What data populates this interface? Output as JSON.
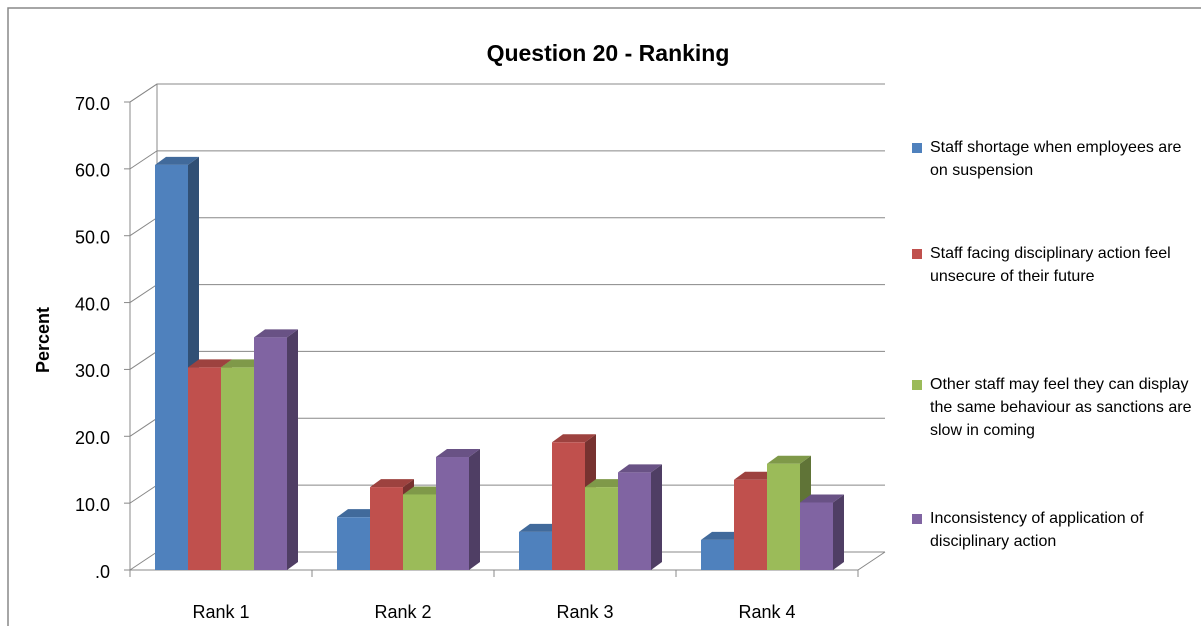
{
  "chart_data": {
    "type": "bar3d",
    "title": "Question 20 - Ranking",
    "y_label": "Percent",
    "categories": [
      "Rank 1",
      "Rank 2",
      "Rank 3",
      "Rank 4"
    ],
    "series": [
      {
        "name": "Staff shortage when employees are on suspension",
        "color": "#4f81bd",
        "values": [
          60.6,
          7.9,
          5.7,
          4.5
        ]
      },
      {
        "name": "Staff facing disciplinary action feel unsecure of their future",
        "color": "#c0504d",
        "values": [
          30.3,
          12.4,
          19.1,
          13.5
        ]
      },
      {
        "name": "Other staff may feel they can display the same behaviour as sanctions are slow in coming",
        "color": "#9bbb59",
        "values": [
          30.3,
          11.3,
          12.4,
          15.9
        ]
      },
      {
        "name": "Inconsistency of application of disciplinary action",
        "color": "#8064a2",
        "values": [
          34.8,
          16.9,
          14.6,
          10.1
        ]
      }
    ],
    "ylim": [
      0,
      70
    ],
    "yticks": [
      {
        "value": 0,
        "label": ".0"
      },
      {
        "value": 10,
        "label": "10.0"
      },
      {
        "value": 20,
        "label": "20.0"
      },
      {
        "value": 30,
        "label": "30.0"
      },
      {
        "value": 40,
        "label": "40.0"
      },
      {
        "value": 50,
        "label": "50.0"
      },
      {
        "value": 60,
        "label": "60.0"
      },
      {
        "value": 70,
        "label": "70.0"
      }
    ],
    "grid": true,
    "legend": "right"
  }
}
